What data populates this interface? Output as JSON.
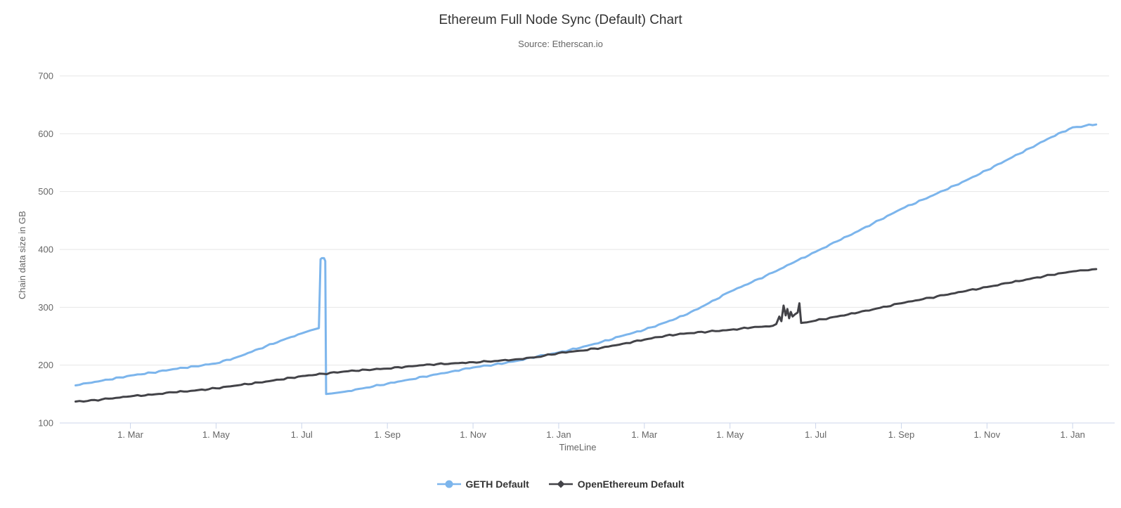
{
  "colors": {
    "geth": "#7cb5ec",
    "openethereum": "#434348",
    "grid": "#e6e6e6",
    "axis": "#ccd6eb",
    "title_text": "#333333",
    "muted_text": "#666666"
  },
  "chart_data": {
    "type": "line",
    "title": "Ethereum Full Node Sync (Default) Chart",
    "subtitle": "Source: Etherscan.io",
    "xlabel": "TimeLine",
    "ylabel": "Chain data size in GB",
    "ylim": [
      100,
      700
    ],
    "y_ticks": [
      100,
      200,
      300,
      400,
      500,
      600,
      700
    ],
    "xlim": [
      0.35,
      24.85
    ],
    "x_tick_months": [
      2,
      4,
      6,
      8,
      10,
      12,
      14,
      16,
      18,
      20,
      22,
      24
    ],
    "x_tick_labels": [
      "1. Mar",
      "1. May",
      "1. Jul",
      "1. Sep",
      "1. Nov",
      "1. Jan",
      "1. Mar",
      "1. May",
      "1. Jul",
      "1. Sep",
      "1. Nov",
      "1. Jan"
    ],
    "grid": true,
    "legend_position": "bottom",
    "series": [
      {
        "name": "GETH Default",
        "color": "#7cb5ec",
        "marker": "circle",
        "unit": "GB",
        "points": [
          [
            0.72,
            165
          ],
          [
            1,
            169
          ],
          [
            1.5,
            175
          ],
          [
            2,
            182
          ],
          [
            2.5,
            187
          ],
          [
            3,
            193
          ],
          [
            3.5,
            198
          ],
          [
            4,
            203
          ],
          [
            4.5,
            214
          ],
          [
            5,
            228
          ],
          [
            5.5,
            242
          ],
          [
            6,
            255
          ],
          [
            6.2,
            260
          ],
          [
            6.4,
            264
          ],
          [
            6.44,
            383
          ],
          [
            6.47,
            385
          ],
          [
            6.52,
            385
          ],
          [
            6.55,
            380
          ],
          [
            6.57,
            150
          ],
          [
            6.7,
            151
          ],
          [
            6.9,
            153
          ],
          [
            7,
            154
          ],
          [
            7.5,
            161
          ],
          [
            8,
            168
          ],
          [
            8.5,
            175
          ],
          [
            9,
            182
          ],
          [
            9.5,
            189
          ],
          [
            10,
            196
          ],
          [
            10.5,
            201
          ],
          [
            11,
            207
          ],
          [
            11.5,
            215
          ],
          [
            12,
            222
          ],
          [
            12.5,
            230
          ],
          [
            13,
            240
          ],
          [
            13.5,
            251
          ],
          [
            14,
            261
          ],
          [
            14.5,
            274
          ],
          [
            15,
            288
          ],
          [
            15.5,
            307
          ],
          [
            16,
            327
          ],
          [
            16.5,
            343
          ],
          [
            17,
            360
          ],
          [
            17.5,
            378
          ],
          [
            18,
            396
          ],
          [
            18.5,
            414
          ],
          [
            19,
            432
          ],
          [
            19.5,
            451
          ],
          [
            20,
            470
          ],
          [
            20.5,
            486
          ],
          [
            21,
            502
          ],
          [
            21.5,
            519
          ],
          [
            22,
            537
          ],
          [
            22.5,
            556
          ],
          [
            23,
            575
          ],
          [
            23.5,
            594
          ],
          [
            24,
            611
          ],
          [
            24.3,
            614
          ],
          [
            24.55,
            616
          ]
        ]
      },
      {
        "name": "OpenEthereum Default",
        "color": "#434348",
        "marker": "diamond",
        "unit": "GB",
        "points": [
          [
            0.72,
            137
          ],
          [
            1,
            138
          ],
          [
            1.5,
            142
          ],
          [
            2,
            146
          ],
          [
            2.5,
            149
          ],
          [
            3,
            153
          ],
          [
            3.5,
            156
          ],
          [
            4,
            160
          ],
          [
            4.5,
            165
          ],
          [
            5,
            170
          ],
          [
            5.5,
            175
          ],
          [
            6,
            181
          ],
          [
            6.5,
            185
          ],
          [
            7,
            189
          ],
          [
            7.5,
            192
          ],
          [
            8,
            194
          ],
          [
            8.5,
            198
          ],
          [
            9,
            201
          ],
          [
            9.5,
            203
          ],
          [
            10,
            205
          ],
          [
            10.5,
            207
          ],
          [
            11,
            210
          ],
          [
            11.5,
            214
          ],
          [
            12,
            221
          ],
          [
            12.5,
            225
          ],
          [
            13,
            230
          ],
          [
            13.5,
            237
          ],
          [
            14,
            244
          ],
          [
            14.5,
            251
          ],
          [
            15,
            255
          ],
          [
            15.5,
            258
          ],
          [
            16,
            261
          ],
          [
            16.5,
            265
          ],
          [
            17,
            268
          ],
          [
            17.08,
            271
          ],
          [
            17.15,
            284
          ],
          [
            17.2,
            276
          ],
          [
            17.25,
            303
          ],
          [
            17.3,
            286
          ],
          [
            17.34,
            297
          ],
          [
            17.38,
            281
          ],
          [
            17.42,
            292
          ],
          [
            17.46,
            284
          ],
          [
            17.52,
            288
          ],
          [
            17.58,
            291
          ],
          [
            17.62,
            307
          ],
          [
            17.66,
            273
          ],
          [
            17.8,
            274
          ],
          [
            18,
            277
          ],
          [
            18.5,
            284
          ],
          [
            19,
            291
          ],
          [
            19.5,
            299
          ],
          [
            20,
            307
          ],
          [
            20.5,
            314
          ],
          [
            21,
            321
          ],
          [
            21.5,
            328
          ],
          [
            22,
            335
          ],
          [
            22.5,
            342
          ],
          [
            23,
            349
          ],
          [
            23.5,
            356
          ],
          [
            24,
            362
          ],
          [
            24.55,
            366
          ]
        ]
      }
    ]
  }
}
